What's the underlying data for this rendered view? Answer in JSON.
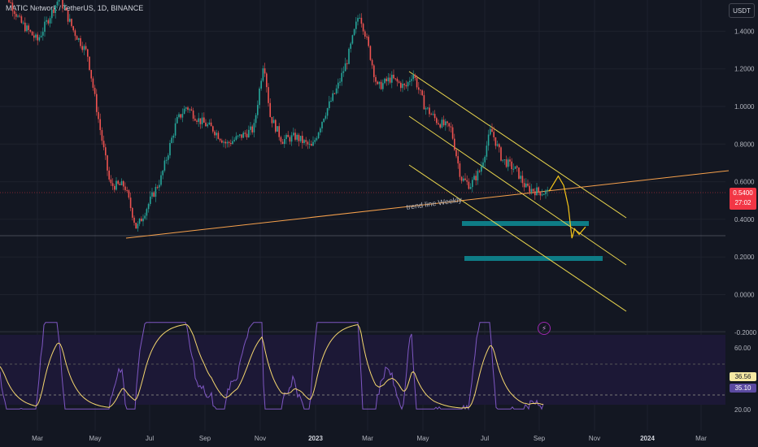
{
  "header": {
    "title": "MATIC Network / TetherUS, 1D, BINANCE",
    "currency_badge": "USDT"
  },
  "current_price": {
    "value": "0.5400",
    "countdown": "27:02"
  },
  "rsi_values": {
    "rsi": "36.56",
    "ma": "35.10"
  },
  "annotation": "trend line Weekly",
  "colors": {
    "background": "#131722",
    "up_candle": "#26a69a",
    "down_candle": "#ef5350",
    "projection": "#f5c518",
    "channel": "#e8d44d",
    "trendline": "#f7a14c",
    "zone": "#0e7c86",
    "rsi_line": "#7e57c2",
    "rsi_ma": "#f5d76e"
  },
  "chart_data": [
    {
      "type": "line",
      "title": "MATIC Network / TetherUS, 1D, BINANCE",
      "x_tick_labels": [
        "Mar",
        "May",
        "Jul",
        "Sep",
        "Nov",
        "2023",
        "Mar",
        "May",
        "Jul",
        "Sep",
        "Nov",
        "2024",
        "Mar"
      ],
      "y_tick_labels": [
        "1.4000",
        "1.2000",
        "1.0000",
        "0.8000",
        "0.6000",
        "0.4000",
        "0.2000",
        "0.0000",
        "-0.2000"
      ],
      "ylim": [
        -0.2,
        1.5
      ],
      "series": [
        {
          "x": [
            "2022-01-01",
            "2022-01-20",
            "2022-02-10",
            "2022-03-01",
            "2022-03-25",
            "2022-04-10",
            "2022-04-25",
            "2022-05-10",
            "2022-05-20",
            "2022-06-05",
            "2022-06-18",
            "2022-07-01",
            "2022-07-15",
            "2022-08-01",
            "2022-08-12",
            "2022-08-25",
            "2022-09-10",
            "2022-09-25",
            "2022-10-10",
            "2022-10-25",
            "2022-11-05",
            "2022-11-12",
            "2022-11-25",
            "2022-12-10",
            "2022-12-28",
            "2023-01-10",
            "2023-01-25",
            "2023-02-05",
            "2023-02-18",
            "2023-02-25",
            "2023-03-10",
            "2023-03-25",
            "2023-04-10",
            "2023-04-18",
            "2023-05-01",
            "2023-05-15",
            "2023-05-30",
            "2023-06-10",
            "2023-06-20",
            "2023-07-01",
            "2023-07-13",
            "2023-07-25",
            "2023-08-10",
            "2023-08-20",
            "2023-09-01",
            "2023-09-15"
          ],
          "y": [
            1.55,
            1.65,
            1.45,
            1.35,
            1.58,
            1.4,
            1.28,
            0.85,
            0.58,
            0.58,
            0.35,
            0.48,
            0.62,
            0.92,
            1.0,
            0.93,
            0.88,
            0.8,
            0.84,
            0.88,
            1.25,
            0.95,
            0.82,
            0.84,
            0.78,
            0.95,
            1.1,
            1.25,
            1.5,
            1.38,
            1.1,
            1.15,
            1.1,
            1.18,
            1.0,
            0.92,
            0.88,
            0.62,
            0.58,
            0.66,
            0.88,
            0.72,
            0.66,
            0.57,
            0.55,
            0.54
          ]
        },
        {
          "x": [
            "2023-09-15",
            "2023-09-25",
            "2023-10-01",
            "2023-10-06",
            "2023-10-10",
            "2023-10-13",
            "2023-10-18",
            "2023-10-25"
          ],
          "y": [
            0.55,
            0.63,
            0.58,
            0.47,
            0.3,
            0.35,
            0.32,
            0.36
          ]
        }
      ],
      "annotations": [
        "trend line Weekly"
      ],
      "grid": true
    },
    {
      "type": "line",
      "title": "",
      "y_tick_labels": [
        "60.00",
        "20.00"
      ],
      "series": [
        {
          "name": "RSI",
          "last": 36.56
        },
        {
          "name": "MA",
          "last": 35.1
        }
      ]
    }
  ]
}
